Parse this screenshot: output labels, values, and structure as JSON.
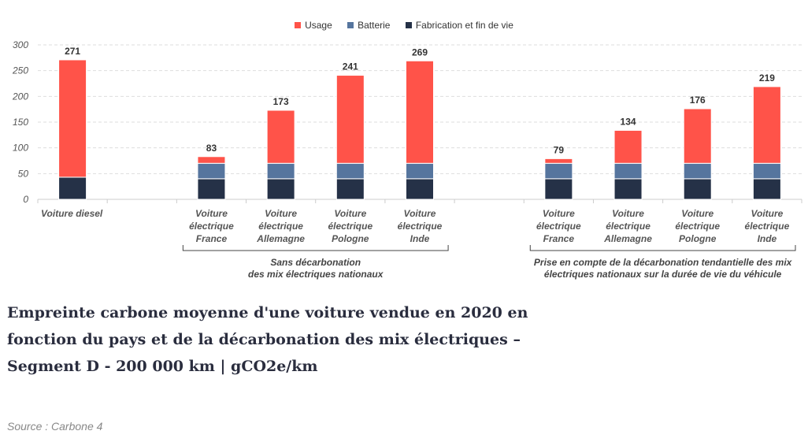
{
  "chart_data": {
    "type": "bar",
    "stacked": true,
    "categories": [
      "Voiture diesel",
      "",
      "Voiture électrique France",
      "Voiture électrique Allemagne",
      "Voiture électrique Pologne",
      "Voiture électrique Inde",
      "",
      "Voiture électrique France",
      "Voiture électrique Allemagne",
      "Voiture électrique Pologne",
      "Voiture électrique Inde"
    ],
    "category_lines": [
      [
        "Voiture diesel"
      ],
      [],
      [
        "Voiture",
        "électrique",
        "France"
      ],
      [
        "Voiture",
        "électrique",
        "Allemagne"
      ],
      [
        "Voiture",
        "électrique",
        "Pologne"
      ],
      [
        "Voiture",
        "électrique",
        "Inde"
      ],
      [],
      [
        "Voiture",
        "électrique",
        "France"
      ],
      [
        "Voiture",
        "électrique",
        "Allemagne"
      ],
      [
        "Voiture",
        "électrique",
        "Pologne"
      ],
      [
        "Voiture",
        "électrique",
        "Inde"
      ]
    ],
    "series": [
      {
        "name": "Fabrication et fin de vie",
        "color": "#253147",
        "values": [
          43,
          null,
          40,
          40,
          40,
          40,
          null,
          40,
          40,
          40,
          40
        ]
      },
      {
        "name": "Batterie",
        "color": "#56759e",
        "values": [
          0,
          null,
          30,
          30,
          30,
          30,
          null,
          30,
          30,
          30,
          30
        ]
      },
      {
        "name": "Usage",
        "color": "#ff5349",
        "values": [
          228,
          null,
          13,
          103,
          171,
          199,
          null,
          9,
          64,
          106,
          149
        ]
      }
    ],
    "totals": [
      271,
      null,
      83,
      173,
      241,
      269,
      null,
      79,
      134,
      176,
      219
    ],
    "yticks": [
      0,
      50,
      100,
      150,
      200,
      250,
      300
    ],
    "ylim": [
      0,
      300
    ],
    "grid": true,
    "legend": "top",
    "groups": [
      {
        "lines": [
          "Sans décarbonation",
          "des mix électriques nationaux"
        ],
        "from": 2,
        "to": 5
      },
      {
        "lines": [
          "Prise en compte de la décarbonation tendantielle des mix",
          "électriques nationaux sur la durée de vie du véhicule"
        ],
        "from": 7,
        "to": 10
      }
    ]
  },
  "title": "Empreinte carbone moyenne d'une voiture vendue en 2020 en fonction du pays et de la décarbonation des mix électriques – Segment D - 200 000 km | gCO2e/km",
  "source": "Source : Carbone 4"
}
